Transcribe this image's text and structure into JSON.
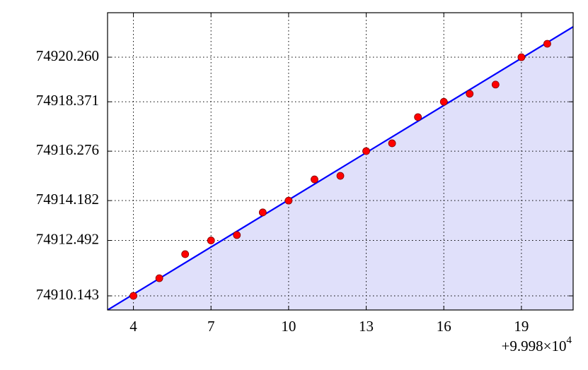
{
  "chart_data": {
    "type": "scatter",
    "xlim": [
      3,
      21
    ],
    "ylim": [
      74909.544,
      74922.146
    ],
    "xticks": [
      4,
      7,
      10,
      13,
      16,
      19
    ],
    "yticks": [
      74910.143,
      74912.492,
      74914.182,
      74916.276,
      74918.371,
      {
        "value": 74920.26,
        "label": "74920.260"
      }
    ],
    "grid": true,
    "x_offset": {
      "base": "+9.998×10",
      "exponent": "4"
    },
    "fit": {
      "x": [
        3,
        21
      ],
      "values": [
        74909.544,
        74921.55
      ],
      "color": "#0000ff",
      "fill": "#e0e0fa"
    },
    "series": [
      {
        "color": "#ff0000",
        "x": [
          4,
          5,
          6,
          7,
          8,
          9,
          10,
          11,
          12,
          13,
          14,
          15,
          16,
          17,
          18,
          19,
          20
        ],
        "values": [
          74910.143,
          74910.89,
          74911.91,
          74912.49,
          74912.72,
          74913.68,
          74914.18,
          74915.08,
          74915.23,
          74916.28,
          74916.61,
          74917.72,
          74918.37,
          74918.71,
          74919.1,
          74920.26,
          74920.83
        ]
      }
    ]
  }
}
